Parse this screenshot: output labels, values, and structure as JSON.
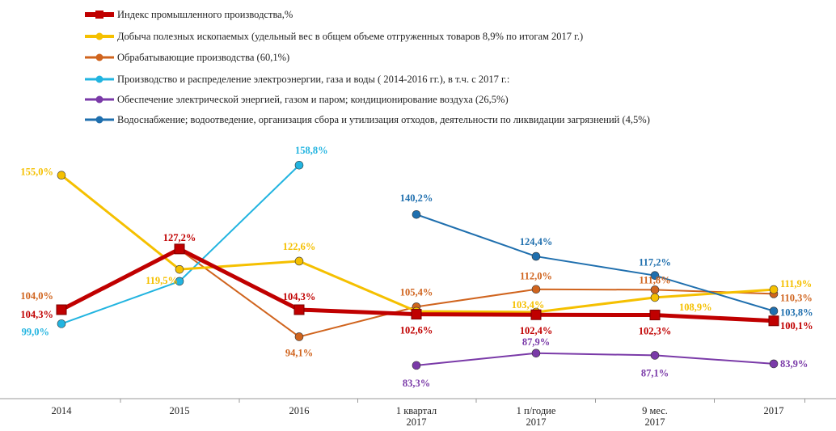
{
  "chart_data": {
    "type": "line",
    "categories": [
      [
        "2014"
      ],
      [
        "2015"
      ],
      [
        "2016"
      ],
      [
        "1 квартал",
        "2017"
      ],
      [
        "1 п/годие",
        "2017"
      ],
      [
        "9 мес.",
        "2017"
      ],
      [
        "2017"
      ]
    ],
    "series": [
      {
        "name": "Индекс промышленного производства,%",
        "color": "#c00000",
        "marker": "square",
        "values": [
          104.3,
          127.2,
          104.3,
          102.6,
          102.4,
          102.3,
          100.1
        ],
        "labels": [
          "104,3%",
          "127,2%",
          "104,3%",
          "102,6%",
          "102,4%",
          "102,3%",
          "100,1%"
        ]
      },
      {
        "name": "Добыча полезных ископаемых (удельный вес в общем объеме отгруженных товаров 8,9% по итогам 2017 г.)",
        "color": "#f5c000",
        "marker": "circle",
        "values": [
          155.0,
          119.5,
          122.6,
          103.7,
          103.4,
          108.9,
          111.9
        ],
        "labels": [
          "155,0%",
          "119,5%",
          "122,6%",
          null,
          "103,4%",
          "108,9%",
          "111,9%"
        ]
      },
      {
        "name": "Обрабатывающие производства (60,1%)",
        "color": "#d0641e",
        "marker": "circle",
        "values": [
          104.0,
          127.0,
          94.1,
          105.4,
          112.0,
          111.8,
          110.3
        ],
        "labels": [
          "104,0%",
          null,
          "94,1%",
          "105,4%",
          "112,0%",
          "111,8%",
          "110,3%"
        ]
      },
      {
        "name": "Производство и распределение электроэнергии, газа и воды ( 2014-2016 гг.), в т.ч. с 2017 г.:",
        "color": "#22b4e0",
        "marker": "circle",
        "values": [
          99.0,
          115.0,
          158.8,
          null,
          null,
          null,
          null
        ],
        "labels": [
          "99,0%",
          null,
          "158,8%",
          null,
          null,
          null,
          null
        ]
      },
      {
        "name": "Обеспечение электрической энергией, газом и паром; кондиционирование воздуха (26,5%)",
        "color": "#7a3aa8",
        "marker": "circle",
        "values": [
          null,
          null,
          null,
          83.3,
          87.9,
          87.1,
          83.9
        ],
        "labels": [
          null,
          null,
          null,
          "83,3%",
          "87,9%",
          "87,1%",
          "83,9%"
        ]
      },
      {
        "name": "Водоснабжение; водоотведение, организация сбора и утилизация отходов, деятельности по ликвидации загрязнений (4,5%)",
        "color": "#1f6fae",
        "marker": "circle",
        "values": [
          null,
          null,
          null,
          140.2,
          124.4,
          117.2,
          103.8
        ],
        "labels": [
          null,
          null,
          null,
          "140,2%",
          "124,4%",
          "117,2%",
          "103,8%"
        ]
      }
    ],
    "title": "",
    "xlabel": "",
    "ylabel": "",
    "legend": "top",
    "grid": false
  }
}
